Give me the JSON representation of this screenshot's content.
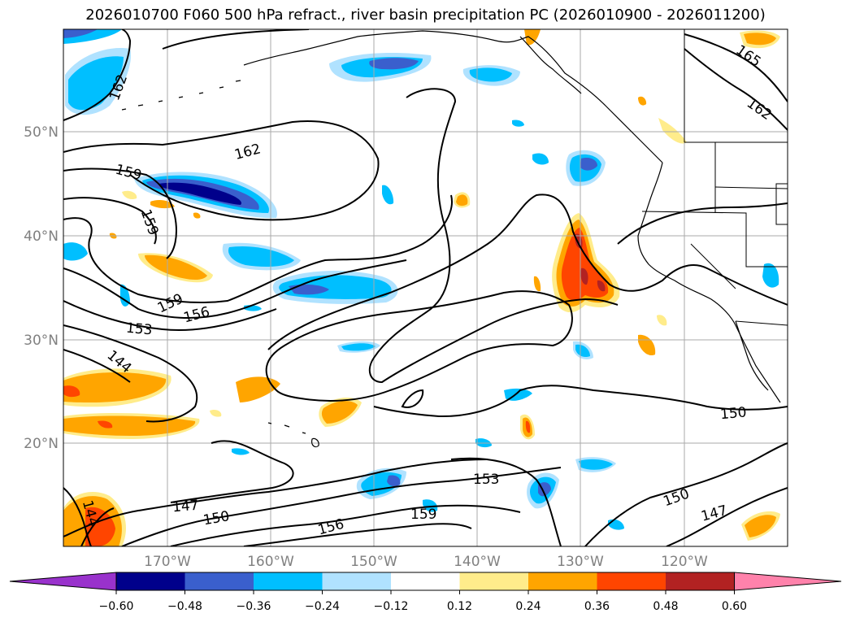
{
  "title": "2026010700 F060 500 hPa refract., river basin precipitation PC (2026010900 - 2026011200)",
  "lat_labels": [
    "50°N",
    "40°N",
    "30°N",
    "20°N"
  ],
  "lon_labels": [
    "170°W",
    "160°W",
    "150°W",
    "140°W",
    "130°W",
    "120°W"
  ],
  "contour_labels": [
    "162",
    "165",
    "162",
    "162",
    "159",
    "159",
    "159",
    "156",
    "153",
    "144",
    "150",
    "153",
    "147",
    "150",
    "156",
    "159",
    "150",
    "147",
    "144"
  ],
  "colorbar": {
    "ticks": [
      "−0.60",
      "−0.48",
      "−0.36",
      "−0.24",
      "−0.12",
      "0.12",
      "0.24",
      "0.36",
      "0.48",
      "0.60"
    ],
    "colors": [
      "#9932cc",
      "#00008b",
      "#3a5fcd",
      "#00bfff",
      "#b0e2ff",
      "#ffffff",
      "#ffec8b",
      "#ffa500",
      "#ff4500",
      "#b22222",
      "#ff82ab"
    ]
  },
  "colors": {
    "neg_strong": "#3a5fcd",
    "neg_mid": "#00bfff",
    "neg_weak": "#b0e2ff",
    "pos_weak": "#ffec8b",
    "pos_mid": "#ffa500",
    "pos_strong": "#ff4500",
    "pos_stronger": "#b22222"
  }
}
